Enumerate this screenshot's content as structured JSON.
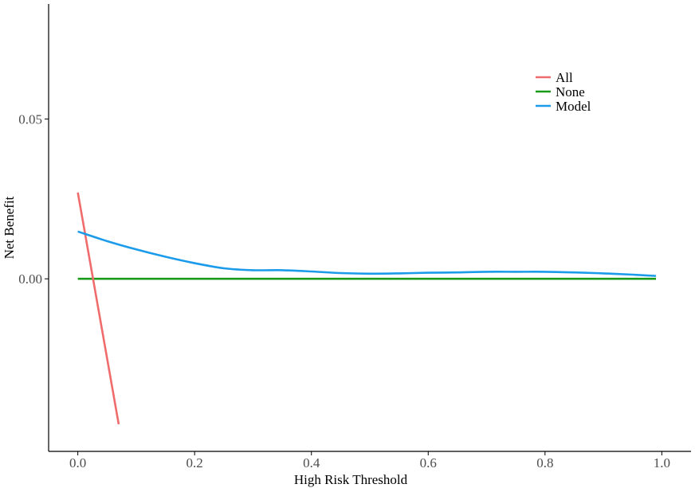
{
  "chart_data": {
    "type": "line",
    "title": "",
    "xlabel": "High Risk Threshold",
    "ylabel": "Net Benefit",
    "xlim": [
      -0.05,
      1.05
    ],
    "ylim": [
      -0.054,
      0.086
    ],
    "x_ticks": [
      0.0,
      0.2,
      0.4,
      0.6,
      0.8,
      1.0
    ],
    "x_tick_labels": [
      "0.0",
      "0.2",
      "0.4",
      "0.6",
      "0.8",
      "1.0"
    ],
    "y_ticks": [
      0.0,
      0.05
    ],
    "y_tick_labels": [
      "0.00",
      "0.05"
    ],
    "grid": false,
    "legend": {
      "position": "top-right"
    },
    "series": [
      {
        "name": "All",
        "color": "#f06c6c",
        "x": [
          0.0,
          0.07
        ],
        "y": [
          0.027,
          -0.0455
        ]
      },
      {
        "name": "None",
        "color": "#1a9a1a",
        "x": [
          0.0,
          0.99
        ],
        "y": [
          0.0,
          0.0
        ]
      },
      {
        "name": "Model",
        "color": "#1b9be9",
        "x": [
          0.0,
          0.05,
          0.1,
          0.15,
          0.2,
          0.25,
          0.3,
          0.35,
          0.4,
          0.45,
          0.5,
          0.55,
          0.6,
          0.65,
          0.7,
          0.75,
          0.8,
          0.85,
          0.9,
          0.95,
          0.99
        ],
        "y": [
          0.0148,
          0.0118,
          0.0092,
          0.0069,
          0.0049,
          0.0033,
          0.0027,
          0.0027,
          0.0023,
          0.0018,
          0.0016,
          0.0017,
          0.0019,
          0.002,
          0.0022,
          0.0022,
          0.0022,
          0.002,
          0.0017,
          0.0013,
          0.0009
        ]
      }
    ]
  }
}
